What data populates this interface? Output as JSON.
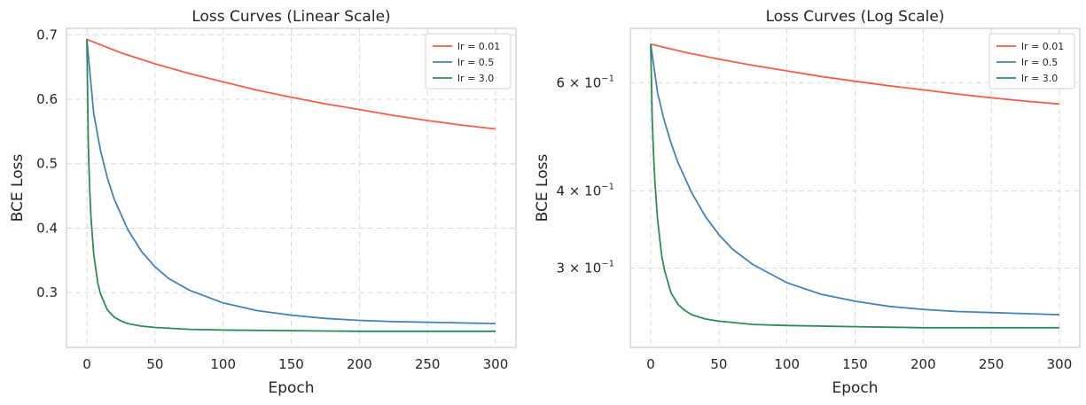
{
  "figure": {
    "charts_count": 2
  },
  "chart_data": [
    {
      "type": "line",
      "title": "Loss Curves (Linear Scale)",
      "xlabel": "Epoch",
      "ylabel": "BCE Loss",
      "xlim": [
        -15,
        315
      ],
      "ylim": [
        0.215,
        0.71
      ],
      "yscale": "linear",
      "xticks": [
        0,
        50,
        100,
        150,
        200,
        250,
        300
      ],
      "xtick_labels": [
        "0",
        "50",
        "100",
        "150",
        "200",
        "250",
        "300"
      ],
      "yticks": [
        0.3,
        0.4,
        0.5,
        0.6,
        0.7
      ],
      "ytick_labels": [
        "0.3",
        "0.4",
        "0.5",
        "0.6",
        "0.7"
      ],
      "grid": true,
      "legend_position": "top-right",
      "series": [
        {
          "name": "lr = 0.01",
          "color": "#f0604a",
          "x": [
            0,
            25,
            50,
            75,
            100,
            125,
            150,
            175,
            200,
            225,
            250,
            275,
            300
          ],
          "y": [
            0.693,
            0.672,
            0.655,
            0.64,
            0.627,
            0.614,
            0.603,
            0.593,
            0.584,
            0.575,
            0.567,
            0.56,
            0.554
          ]
        },
        {
          "name": "lr = 0.5",
          "color": "#4682b4",
          "x": [
            0,
            5,
            10,
            15,
            20,
            30,
            40,
            50,
            60,
            75,
            100,
            125,
            150,
            175,
            200,
            225,
            250,
            275,
            300
          ],
          "y": [
            0.693,
            0.578,
            0.52,
            0.478,
            0.445,
            0.398,
            0.364,
            0.34,
            0.322,
            0.304,
            0.284,
            0.272,
            0.265,
            0.26,
            0.257,
            0.255,
            0.254,
            0.253,
            0.252
          ]
        },
        {
          "name": "lr = 3.0",
          "color": "#2e8b57",
          "x": [
            0,
            1,
            2,
            3,
            5,
            8,
            10,
            15,
            20,
            25,
            30,
            40,
            50,
            75,
            100,
            150,
            200,
            250,
            300
          ],
          "y": [
            0.693,
            0.53,
            0.462,
            0.415,
            0.36,
            0.315,
            0.298,
            0.273,
            0.262,
            0.256,
            0.252,
            0.248,
            0.246,
            0.243,
            0.242,
            0.241,
            0.24,
            0.24,
            0.24
          ]
        }
      ]
    },
    {
      "type": "line",
      "title": "Loss Curves (Log Scale)",
      "xlabel": "Epoch",
      "ylabel": "BCE Loss",
      "xlim": [
        -15,
        315
      ],
      "ylim": [
        0.223,
        0.735
      ],
      "yscale": "log",
      "xticks": [
        0,
        50,
        100,
        150,
        200,
        250,
        300
      ],
      "xtick_labels": [
        "0",
        "50",
        "100",
        "150",
        "200",
        "250",
        "300"
      ],
      "yticks": [
        0.3,
        0.4,
        0.6
      ],
      "ytick_labels": [
        "3 × 10",
        "4 × 10",
        "6 × 10"
      ],
      "ytick_exponent": "−1",
      "grid": true,
      "legend_position": "top-right",
      "series": [
        {
          "name": "lr = 0.01",
          "color": "#f0604a",
          "x": [
            0,
            25,
            50,
            75,
            100,
            125,
            150,
            175,
            200,
            225,
            250,
            275,
            300
          ],
          "y": [
            0.693,
            0.672,
            0.655,
            0.64,
            0.627,
            0.614,
            0.603,
            0.593,
            0.584,
            0.575,
            0.567,
            0.56,
            0.554
          ]
        },
        {
          "name": "lr = 0.5",
          "color": "#4682b4",
          "x": [
            0,
            5,
            10,
            15,
            20,
            30,
            40,
            50,
            60,
            75,
            100,
            125,
            150,
            175,
            200,
            225,
            250,
            275,
            300
          ],
          "y": [
            0.693,
            0.578,
            0.52,
            0.478,
            0.445,
            0.398,
            0.364,
            0.34,
            0.322,
            0.304,
            0.284,
            0.272,
            0.265,
            0.26,
            0.257,
            0.255,
            0.254,
            0.253,
            0.252
          ]
        },
        {
          "name": "lr = 3.0",
          "color": "#2e8b57",
          "x": [
            0,
            1,
            2,
            3,
            5,
            8,
            10,
            15,
            20,
            25,
            30,
            40,
            50,
            75,
            100,
            150,
            200,
            250,
            300
          ],
          "y": [
            0.693,
            0.53,
            0.462,
            0.415,
            0.36,
            0.315,
            0.298,
            0.273,
            0.262,
            0.256,
            0.252,
            0.248,
            0.246,
            0.243,
            0.242,
            0.241,
            0.24,
            0.24,
            0.24
          ]
        }
      ]
    }
  ]
}
